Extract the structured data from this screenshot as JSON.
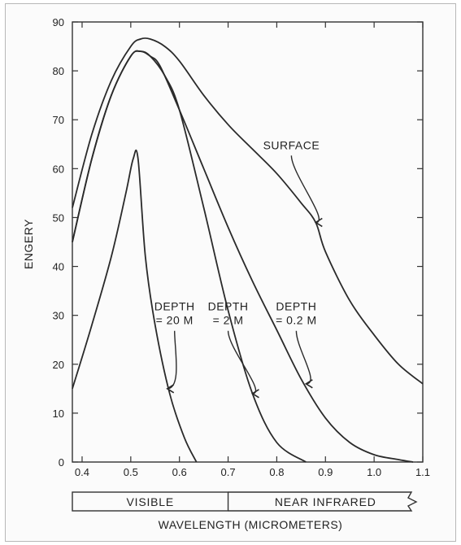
{
  "chart_data": {
    "type": "line",
    "title": "",
    "xlabel": "WAVELENGTH (MICROMETERS)",
    "ylabel": "ENGERY",
    "xlim": [
      0.38,
      1.1
    ],
    "ylim": [
      0,
      90
    ],
    "x_ticks": [
      0.4,
      0.5,
      0.6,
      0.7,
      0.8,
      0.9,
      1.0,
      1.1
    ],
    "x_tick_labels": [
      "0.4",
      "0.5",
      "0.6",
      "0.7",
      "0.8",
      "0.9",
      "1.0",
      "1.1"
    ],
    "y_ticks": [
      0,
      10,
      20,
      30,
      40,
      50,
      60,
      70,
      80,
      90
    ],
    "y_tick_labels": [
      "0",
      "10",
      "20",
      "30",
      "40",
      "50",
      "60",
      "70",
      "80",
      "90"
    ],
    "grid": false,
    "series": [
      {
        "name": "SURFACE",
        "x": [
          0.38,
          0.42,
          0.46,
          0.5,
          0.52,
          0.54,
          0.57,
          0.6,
          0.65,
          0.7,
          0.75,
          0.8,
          0.85,
          0.88,
          0.9,
          0.95,
          1.0,
          1.05,
          1.1
        ],
        "y": [
          52,
          67,
          78,
          85,
          86.5,
          86.5,
          85,
          82,
          75,
          69,
          64,
          59,
          53,
          49,
          43,
          33,
          26,
          20,
          16
        ]
      },
      {
        "name": "DEPTH = 0.2 M",
        "x": [
          0.38,
          0.42,
          0.46,
          0.5,
          0.52,
          0.54,
          0.56,
          0.6,
          0.65,
          0.7,
          0.75,
          0.8,
          0.85,
          0.9,
          0.95,
          1.0,
          1.05,
          1.08
        ],
        "y": [
          45,
          62,
          75,
          83,
          84,
          83,
          81,
          72,
          60,
          48,
          37,
          27,
          17,
          9,
          4,
          1.5,
          0.5,
          0
        ]
      },
      {
        "name": "DEPTH = 2 M",
        "x": [
          0.38,
          0.42,
          0.46,
          0.5,
          0.52,
          0.54,
          0.57,
          0.6,
          0.65,
          0.7,
          0.75,
          0.8,
          0.86
        ],
        "y": [
          45,
          62,
          75,
          83,
          84,
          83,
          79,
          72,
          52,
          31,
          14,
          4,
          0
        ]
      },
      {
        "name": "DEPTH = 20 M",
        "x": [
          0.38,
          0.42,
          0.46,
          0.49,
          0.505,
          0.515,
          0.53,
          0.55,
          0.58,
          0.61,
          0.635
        ],
        "y": [
          15,
          28,
          42,
          55,
          62,
          62,
          42,
          28,
          14,
          5,
          0
        ]
      }
    ],
    "annotations": [
      {
        "lines": [
          "SURFACE"
        ],
        "x": 0.83,
        "y": 64
      },
      {
        "lines": [
          "DEPTH",
          "= 0.2 M"
        ],
        "x": 0.84,
        "y": 31
      },
      {
        "lines": [
          "DEPTH",
          "= 2 M"
        ],
        "x": 0.7,
        "y": 31
      },
      {
        "lines": [
          "DEPTH",
          "= 20 M"
        ],
        "x": 0.59,
        "y": 31
      }
    ],
    "bands": [
      {
        "label": "VISIBLE",
        "from": 0.38,
        "to": 0.7
      },
      {
        "label": "NEAR INFRARED",
        "from": 0.7,
        "to": 1.1
      }
    ]
  }
}
